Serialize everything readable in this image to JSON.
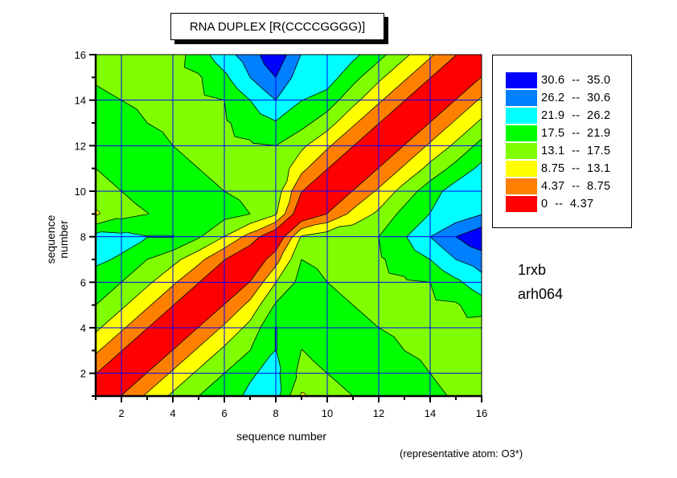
{
  "chart_data": {
    "type": "heatmap",
    "subtype": "filled-contour",
    "title": "RNA DUPLEX [R(CCCCGGGG)]",
    "xlabel": "sequence number",
    "ylabel": "sequence number",
    "xlim": [
      1,
      16
    ],
    "ylim": [
      1,
      16
    ],
    "xticks": [
      2,
      4,
      6,
      8,
      10,
      12,
      14,
      16
    ],
    "yticks": [
      2,
      4,
      6,
      8,
      10,
      12,
      14,
      16
    ],
    "grid": true,
    "x": [
      1,
      2,
      3,
      4,
      5,
      6,
      7,
      8,
      9,
      10,
      11,
      12,
      13,
      14,
      15,
      16
    ],
    "y": [
      1,
      2,
      3,
      4,
      5,
      6,
      7,
      8,
      9,
      10,
      11,
      12,
      13,
      14,
      15,
      16
    ],
    "z": [
      [
        0,
        4.5,
        9.5,
        14,
        17.5,
        20.5,
        22.5,
        23.5,
        12.5,
        15.5,
        17.5,
        19,
        19,
        18.5,
        17,
        16
      ],
      [
        4.5,
        0,
        4.5,
        9.5,
        14,
        17.5,
        21.5,
        23,
        16,
        17.5,
        19.5,
        19.5,
        19,
        17.5,
        16,
        15
      ],
      [
        9.5,
        4.5,
        0,
        4.5,
        9.5,
        14,
        17.5,
        22,
        17.4,
        19,
        19,
        19,
        17.5,
        16.5,
        15.5,
        15
      ],
      [
        14,
        9.5,
        4.5,
        0,
        4.5,
        9.5,
        14.5,
        22,
        20,
        19.5,
        18,
        17.5,
        16.5,
        16,
        15.5,
        15
      ],
      [
        17.5,
        14,
        9.5,
        4.5,
        0,
        4.5,
        10,
        18,
        19.5,
        18.5,
        17.5,
        17,
        16.5,
        16.5,
        17,
        20
      ],
      [
        20.5,
        17.5,
        14,
        9.5,
        4.5,
        0,
        4.5,
        13,
        19,
        17.5,
        16.5,
        16.5,
        17,
        17.5,
        21,
        24.5
      ],
      [
        22.5,
        21.5,
        17.5,
        14.5,
        10,
        4.5,
        0,
        7,
        17.5,
        16.5,
        16,
        17,
        19,
        21.9,
        26.2,
        28.5
      ],
      [
        23.5,
        23,
        22,
        22,
        18,
        13,
        7,
        0,
        13.5,
        15.5,
        16.5,
        17.5,
        21.5,
        26.2,
        30.6,
        34
      ],
      [
        12.5,
        16,
        17.4,
        20,
        19.5,
        19,
        17.5,
        13.5,
        0,
        4.5,
        10,
        14,
        19,
        22,
        23.5,
        26
      ],
      [
        15.5,
        17.5,
        19,
        19.5,
        18.5,
        17.5,
        16.5,
        15.5,
        4.5,
        0,
        4.5,
        9.5,
        15,
        20,
        24,
        25
      ],
      [
        17.5,
        19.5,
        19,
        18,
        17.5,
        16.5,
        16,
        16.5,
        10,
        4.5,
        0,
        4.5,
        9.5,
        14.5,
        19,
        23
      ],
      [
        19,
        19.5,
        19,
        17.5,
        17,
        16.5,
        17,
        17.5,
        14,
        9.5,
        4.5,
        0,
        4.5,
        9.5,
        14,
        19
      ],
      [
        19,
        19,
        17.5,
        16.5,
        16.5,
        17,
        19,
        21.5,
        19,
        15,
        9.5,
        4.5,
        0,
        4.5,
        9.5,
        14
      ],
      [
        18.5,
        17.5,
        16.5,
        16,
        16.5,
        17.5,
        21.9,
        26.2,
        22,
        20,
        14.5,
        9.5,
        4.5,
        0,
        4.5,
        9.5
      ],
      [
        17,
        16,
        15.5,
        15.5,
        17,
        21,
        26.2,
        30.6,
        23.5,
        24,
        19,
        14,
        9.5,
        4.5,
        0,
        4.5
      ],
      [
        16,
        15,
        15,
        15,
        20,
        24.5,
        28.5,
        34,
        26,
        25,
        23,
        19,
        14,
        9.5,
        4.5,
        0
      ]
    ],
    "levels": [
      0,
      4.37,
      8.75,
      13.1,
      17.5,
      21.9,
      26.2,
      30.6,
      35.0
    ],
    "colors": [
      "#ff0000",
      "#ff8000",
      "#ffff00",
      "#80ff00",
      "#00ff00",
      "#00ffff",
      "#0080ff",
      "#0000ff"
    ],
    "legend_position": "right",
    "legend": [
      {
        "label": "30.6  --  35.0",
        "color": "#0000ff"
      },
      {
        "label": "26.2  --  30.6",
        "color": "#0080ff"
      },
      {
        "label": "21.9  --  26.2",
        "color": "#00ffff"
      },
      {
        "label": "17.5  --  21.9",
        "color": "#00ff00"
      },
      {
        "label": "13.1  --  17.5",
        "color": "#80ff00"
      },
      {
        "label": "8.75  --  13.1",
        "color": "#ffff00"
      },
      {
        "label": "4.37  --  8.75",
        "color": "#ff8000"
      },
      {
        "label": "0  --  4.37",
        "color": "#ff0000"
      }
    ],
    "annotations": {
      "pdb_id": "1rxb",
      "ndb_id": "arh064",
      "footnote": "(representative atom: O3*)"
    },
    "grid_color": "#0000ff"
  }
}
